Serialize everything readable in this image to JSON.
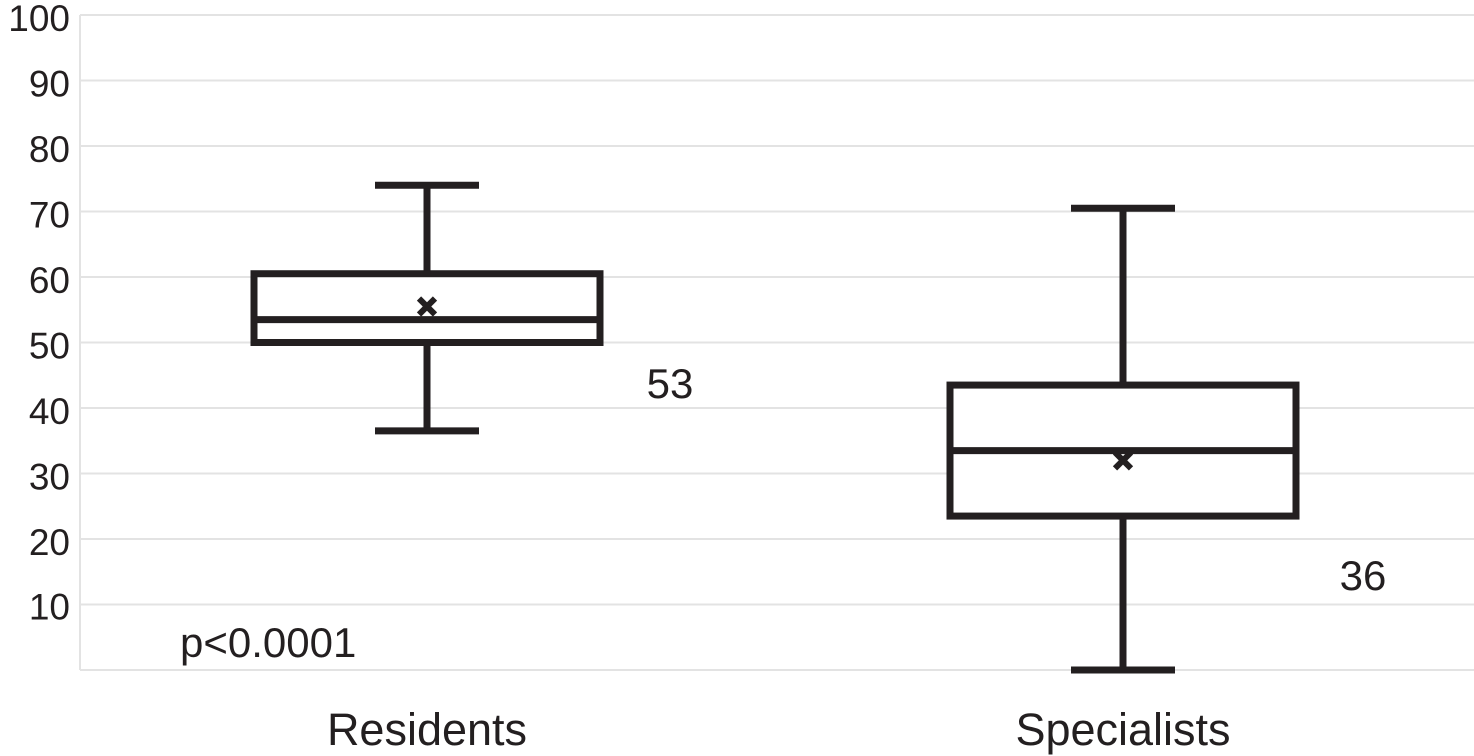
{
  "chart_data": {
    "type": "boxplot",
    "title": "",
    "xlabel": "",
    "ylabel": "",
    "ylim": [
      0,
      100
    ],
    "yticks": [
      10,
      20,
      30,
      40,
      50,
      60,
      70,
      80,
      90,
      100
    ],
    "grid": true,
    "categories": [
      "Residents",
      "Specialists"
    ],
    "boxes": [
      {
        "category": "Residents",
        "min": 36.5,
        "q1": 50,
        "median": 53.5,
        "q3": 60.5,
        "max": 74,
        "mean": 55.5,
        "label": "53"
      },
      {
        "category": "Specialists",
        "min": 0,
        "q1": 23.5,
        "median": 33.5,
        "q3": 43.5,
        "max": 70.5,
        "mean": 32,
        "label": "36"
      }
    ],
    "annotations": [
      {
        "text": "p<0.0001"
      }
    ]
  }
}
